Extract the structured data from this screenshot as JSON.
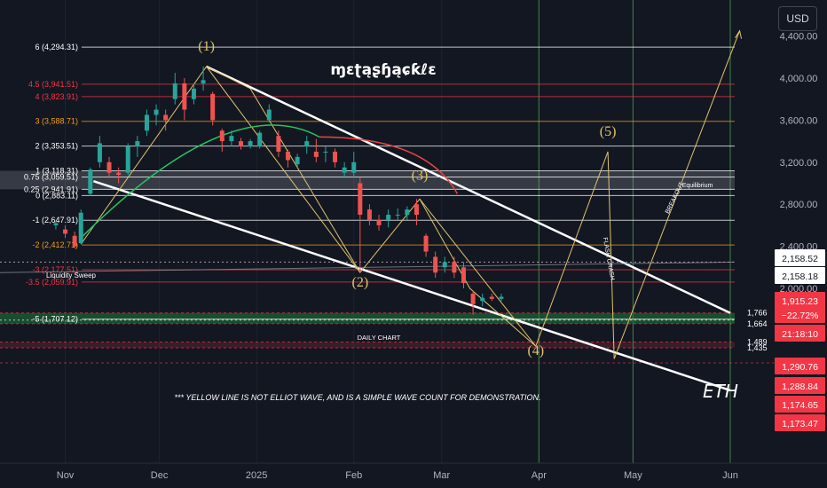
{
  "currency_button": "USD",
  "watermark": "ɱɛʈąʂɧąɕƙℓɛ",
  "ticker": "ETH",
  "notes": {
    "disclaimer": "*** YELLOW LINE IS NOT ELLIOT WAVE, AND IS A SIMPLE WAVE COUNT FOR DEMONSTRATION.",
    "daily_chart": "DAILY CHART",
    "liquidity_sweep": "Liquidity Sweep",
    "equilibrium": "Equilibrium",
    "flash_crash": "FLASH CRASH",
    "breakout": "BREAKOUT"
  },
  "waves": [
    "(1)",
    "(2)",
    "(3)",
    "(4)",
    "(5)"
  ],
  "colors": {
    "background": "#131722",
    "bull": "#26a69a",
    "bear": "#ef5350",
    "fib_red": "#f23645",
    "fib_orange": "#f59e0b",
    "fib_white": "#ffffff",
    "wave_yellow": "#e0c36a",
    "arc_green": "#22c55e",
    "arc_red": "#ef4444",
    "vline_green": "#4caf50",
    "zone_green": "#1f7a3a"
  },
  "chart_data": {
    "type": "line",
    "x_axis": {
      "ticks": [
        "Nov",
        "Dec",
        "2025",
        "Feb",
        "Mar",
        "Apr",
        "May",
        "Jun"
      ]
    },
    "y_axis": {
      "ticks": [
        "2,000.00",
        "2,400.00",
        "2,800.00",
        "3,200.00",
        "3,600.00",
        "4,000.00",
        "4,400.00"
      ],
      "scale": "linear",
      "ylim": [
        1000,
        4470
      ]
    },
    "price_series": [
      {
        "t": "2024-10-29",
        "o": 2600,
        "h": 2640,
        "l": 2560,
        "c": 2620
      },
      {
        "t": "2024-11-01",
        "o": 2560,
        "h": 2600,
        "l": 2480,
        "c": 2520
      },
      {
        "t": "2024-11-04",
        "o": 2500,
        "h": 2540,
        "l": 2380,
        "c": 2400
      },
      {
        "t": "2024-11-06",
        "o": 2430,
        "h": 2750,
        "l": 2420,
        "c": 2720
      },
      {
        "t": "2024-11-09",
        "o": 2900,
        "h": 3150,
        "l": 2880,
        "c": 3130
      },
      {
        "t": "2024-11-12",
        "o": 3200,
        "h": 3450,
        "l": 3150,
        "c": 3380
      },
      {
        "t": "2024-11-15",
        "o": 3200,
        "h": 3250,
        "l": 3050,
        "c": 3100
      },
      {
        "t": "2024-11-18",
        "o": 3100,
        "h": 3150,
        "l": 3000,
        "c": 3080
      },
      {
        "t": "2024-11-21",
        "o": 3100,
        "h": 3380,
        "l": 3080,
        "c": 3350
      },
      {
        "t": "2024-11-24",
        "o": 3350,
        "h": 3450,
        "l": 3250,
        "c": 3400
      },
      {
        "t": "2024-11-27",
        "o": 3500,
        "h": 3700,
        "l": 3450,
        "c": 3650
      },
      {
        "t": "2024-11-30",
        "o": 3650,
        "h": 3750,
        "l": 3550,
        "c": 3700
      },
      {
        "t": "2024-12-03",
        "o": 3650,
        "h": 3700,
        "l": 3500,
        "c": 3600
      },
      {
        "t": "2024-12-06",
        "o": 3800,
        "h": 4050,
        "l": 3750,
        "c": 3950
      },
      {
        "t": "2024-12-09",
        "o": 3950,
        "h": 4000,
        "l": 3600,
        "c": 3700
      },
      {
        "t": "2024-12-12",
        "o": 3800,
        "h": 3950,
        "l": 3750,
        "c": 3900
      },
      {
        "t": "2024-12-15",
        "o": 3950,
        "h": 4110,
        "l": 3880,
        "c": 3980
      },
      {
        "t": "2024-12-18",
        "o": 3850,
        "h": 3870,
        "l": 3550,
        "c": 3600
      },
      {
        "t": "2024-12-21",
        "o": 3500,
        "h": 3520,
        "l": 3300,
        "c": 3400
      },
      {
        "t": "2024-12-24",
        "o": 3400,
        "h": 3500,
        "l": 3350,
        "c": 3450
      },
      {
        "t": "2024-12-27",
        "o": 3400,
        "h": 3430,
        "l": 3320,
        "c": 3350
      },
      {
        "t": "2024-12-30",
        "o": 3350,
        "h": 3420,
        "l": 3330,
        "c": 3400
      },
      {
        "t": "2025-01-02",
        "o": 3350,
        "h": 3500,
        "l": 3330,
        "c": 3480
      },
      {
        "t": "2025-01-05",
        "o": 3600,
        "h": 3750,
        "l": 3580,
        "c": 3700
      },
      {
        "t": "2025-01-08",
        "o": 3450,
        "h": 3500,
        "l": 3250,
        "c": 3300
      },
      {
        "t": "2025-01-11",
        "o": 3300,
        "h": 3320,
        "l": 3150,
        "c": 3220
      },
      {
        "t": "2025-01-14",
        "o": 3180,
        "h": 3280,
        "l": 3150,
        "c": 3250
      },
      {
        "t": "2025-01-17",
        "o": 3350,
        "h": 3450,
        "l": 3280,
        "c": 3400
      },
      {
        "t": "2025-01-20",
        "o": 3300,
        "h": 3420,
        "l": 3200,
        "c": 3250
      },
      {
        "t": "2025-01-23",
        "o": 3300,
        "h": 3350,
        "l": 3200,
        "c": 3300
      },
      {
        "t": "2025-01-26",
        "o": 3300,
        "h": 3330,
        "l": 3150,
        "c": 3200
      },
      {
        "t": "2025-01-29",
        "o": 3100,
        "h": 3200,
        "l": 3050,
        "c": 3150
      },
      {
        "t": "2025-02-01",
        "o": 3100,
        "h": 3300,
        "l": 3050,
        "c": 3200
      },
      {
        "t": "2025-02-03",
        "o": 3000,
        "h": 3050,
        "l": 2150,
        "c": 2700
      },
      {
        "t": "2025-02-06",
        "o": 2750,
        "h": 2800,
        "l": 2600,
        "c": 2650
      },
      {
        "t": "2025-02-09",
        "o": 2650,
        "h": 2700,
        "l": 2550,
        "c": 2600
      },
      {
        "t": "2025-02-12",
        "o": 2650,
        "h": 2750,
        "l": 2580,
        "c": 2700
      },
      {
        "t": "2025-02-15",
        "o": 2700,
        "h": 2760,
        "l": 2650,
        "c": 2700
      },
      {
        "t": "2025-02-18",
        "o": 2700,
        "h": 2780,
        "l": 2650,
        "c": 2750
      },
      {
        "t": "2025-02-21",
        "o": 2800,
        "h": 2850,
        "l": 2600,
        "c": 2700
      },
      {
        "t": "2025-02-24",
        "o": 2500,
        "h": 2520,
        "l": 2300,
        "c": 2350
      },
      {
        "t": "2025-02-27",
        "o": 2300,
        "h": 2350,
        "l": 2100,
        "c": 2150
      },
      {
        "t": "2025-03-02",
        "o": 2200,
        "h": 2300,
        "l": 2150,
        "c": 2250
      },
      {
        "t": "2025-03-05",
        "o": 2250,
        "h": 2300,
        "l": 2100,
        "c": 2150
      },
      {
        "t": "2025-03-08",
        "o": 2200,
        "h": 2250,
        "l": 2000,
        "c": 2050
      },
      {
        "t": "2025-03-11",
        "o": 1950,
        "h": 1980,
        "l": 1750,
        "c": 1850
      },
      {
        "t": "2025-03-14",
        "o": 1880,
        "h": 1950,
        "l": 1830,
        "c": 1910
      },
      {
        "t": "2025-03-17",
        "o": 1920,
        "h": 1950,
        "l": 1880,
        "c": 1900
      },
      {
        "t": "2025-03-20",
        "o": 1900,
        "h": 1950,
        "l": 1880,
        "c": 1920
      }
    ],
    "fib_levels": [
      {
        "label": "6 (4,294.31)",
        "price": 4294.31,
        "color": "fib_white"
      },
      {
        "label": "4.5 (3,941.51)",
        "price": 3941.51,
        "color": "fib_red"
      },
      {
        "label": "4 (3,823.91)",
        "price": 3823.91,
        "color": "fib_red"
      },
      {
        "label": "3 (3,588.71)",
        "price": 3588.71,
        "color": "fib_orange"
      },
      {
        "label": "2 (3,353.51)",
        "price": 3353.51,
        "color": "fib_white"
      },
      {
        "label": "1 (3,118.31)",
        "price": 3118.31,
        "color": "fib_white"
      },
      {
        "label": "0.75 (3,059.51)",
        "price": 3059.51,
        "color": "fib_white"
      },
      {
        "label": "0.25 (2,941.91)",
        "price": 2941.91,
        "color": "fib_white"
      },
      {
        "label": "0 (2,883.11)",
        "price": 2883.11,
        "color": "fib_white"
      },
      {
        "label": "-1 (2,647.91)",
        "price": 2647.91,
        "color": "fib_white"
      },
      {
        "label": "-2 (2,412.71)",
        "price": 2412.71,
        "color": "fib_orange"
      },
      {
        "label": "-3 (2,177.51)",
        "price": 2177.51,
        "color": "fib_red"
      },
      {
        "label": "-3.5 (2,059.91)",
        "price": 2059.91,
        "color": "fib_red"
      },
      {
        "label": "-5 (1,707.12)",
        "price": 1707.12,
        "color": "fib_white"
      }
    ],
    "extra_levels": [
      {
        "label": "1,766",
        "price": 1766
      },
      {
        "label": "1,664",
        "price": 1664
      },
      {
        "label": "1,489",
        "price": 1489
      },
      {
        "label": "1,435",
        "price": 1435
      }
    ],
    "wave_points": [
      {
        "label": "(1)",
        "t": "2024-12-16",
        "price": 4110
      },
      {
        "label": "(2)",
        "t": "2025-02-03",
        "price": 2150
      },
      {
        "label": "(3)",
        "t": "2025-02-22",
        "price": 2850
      },
      {
        "label": "(4)",
        "t": "2025-03-31",
        "price": 1450
      },
      {
        "label": "(5)",
        "t": "2025-04-23",
        "price": 3300
      }
    ],
    "price_tags": [
      {
        "text": "2,158.52",
        "style": "white"
      },
      {
        "text": "2,158.18",
        "style": "white"
      },
      {
        "text": "1,915.23",
        "style": "red"
      },
      {
        "text": "−22.72%",
        "style": "red"
      },
      {
        "text": "21:18:10",
        "style": "red"
      },
      {
        "text": "1,290.76",
        "style": "red"
      },
      {
        "text": "1,288.84",
        "style": "red"
      },
      {
        "text": "1,174.65",
        "style": "red"
      },
      {
        "text": "1,173.47",
        "style": "red"
      }
    ]
  }
}
